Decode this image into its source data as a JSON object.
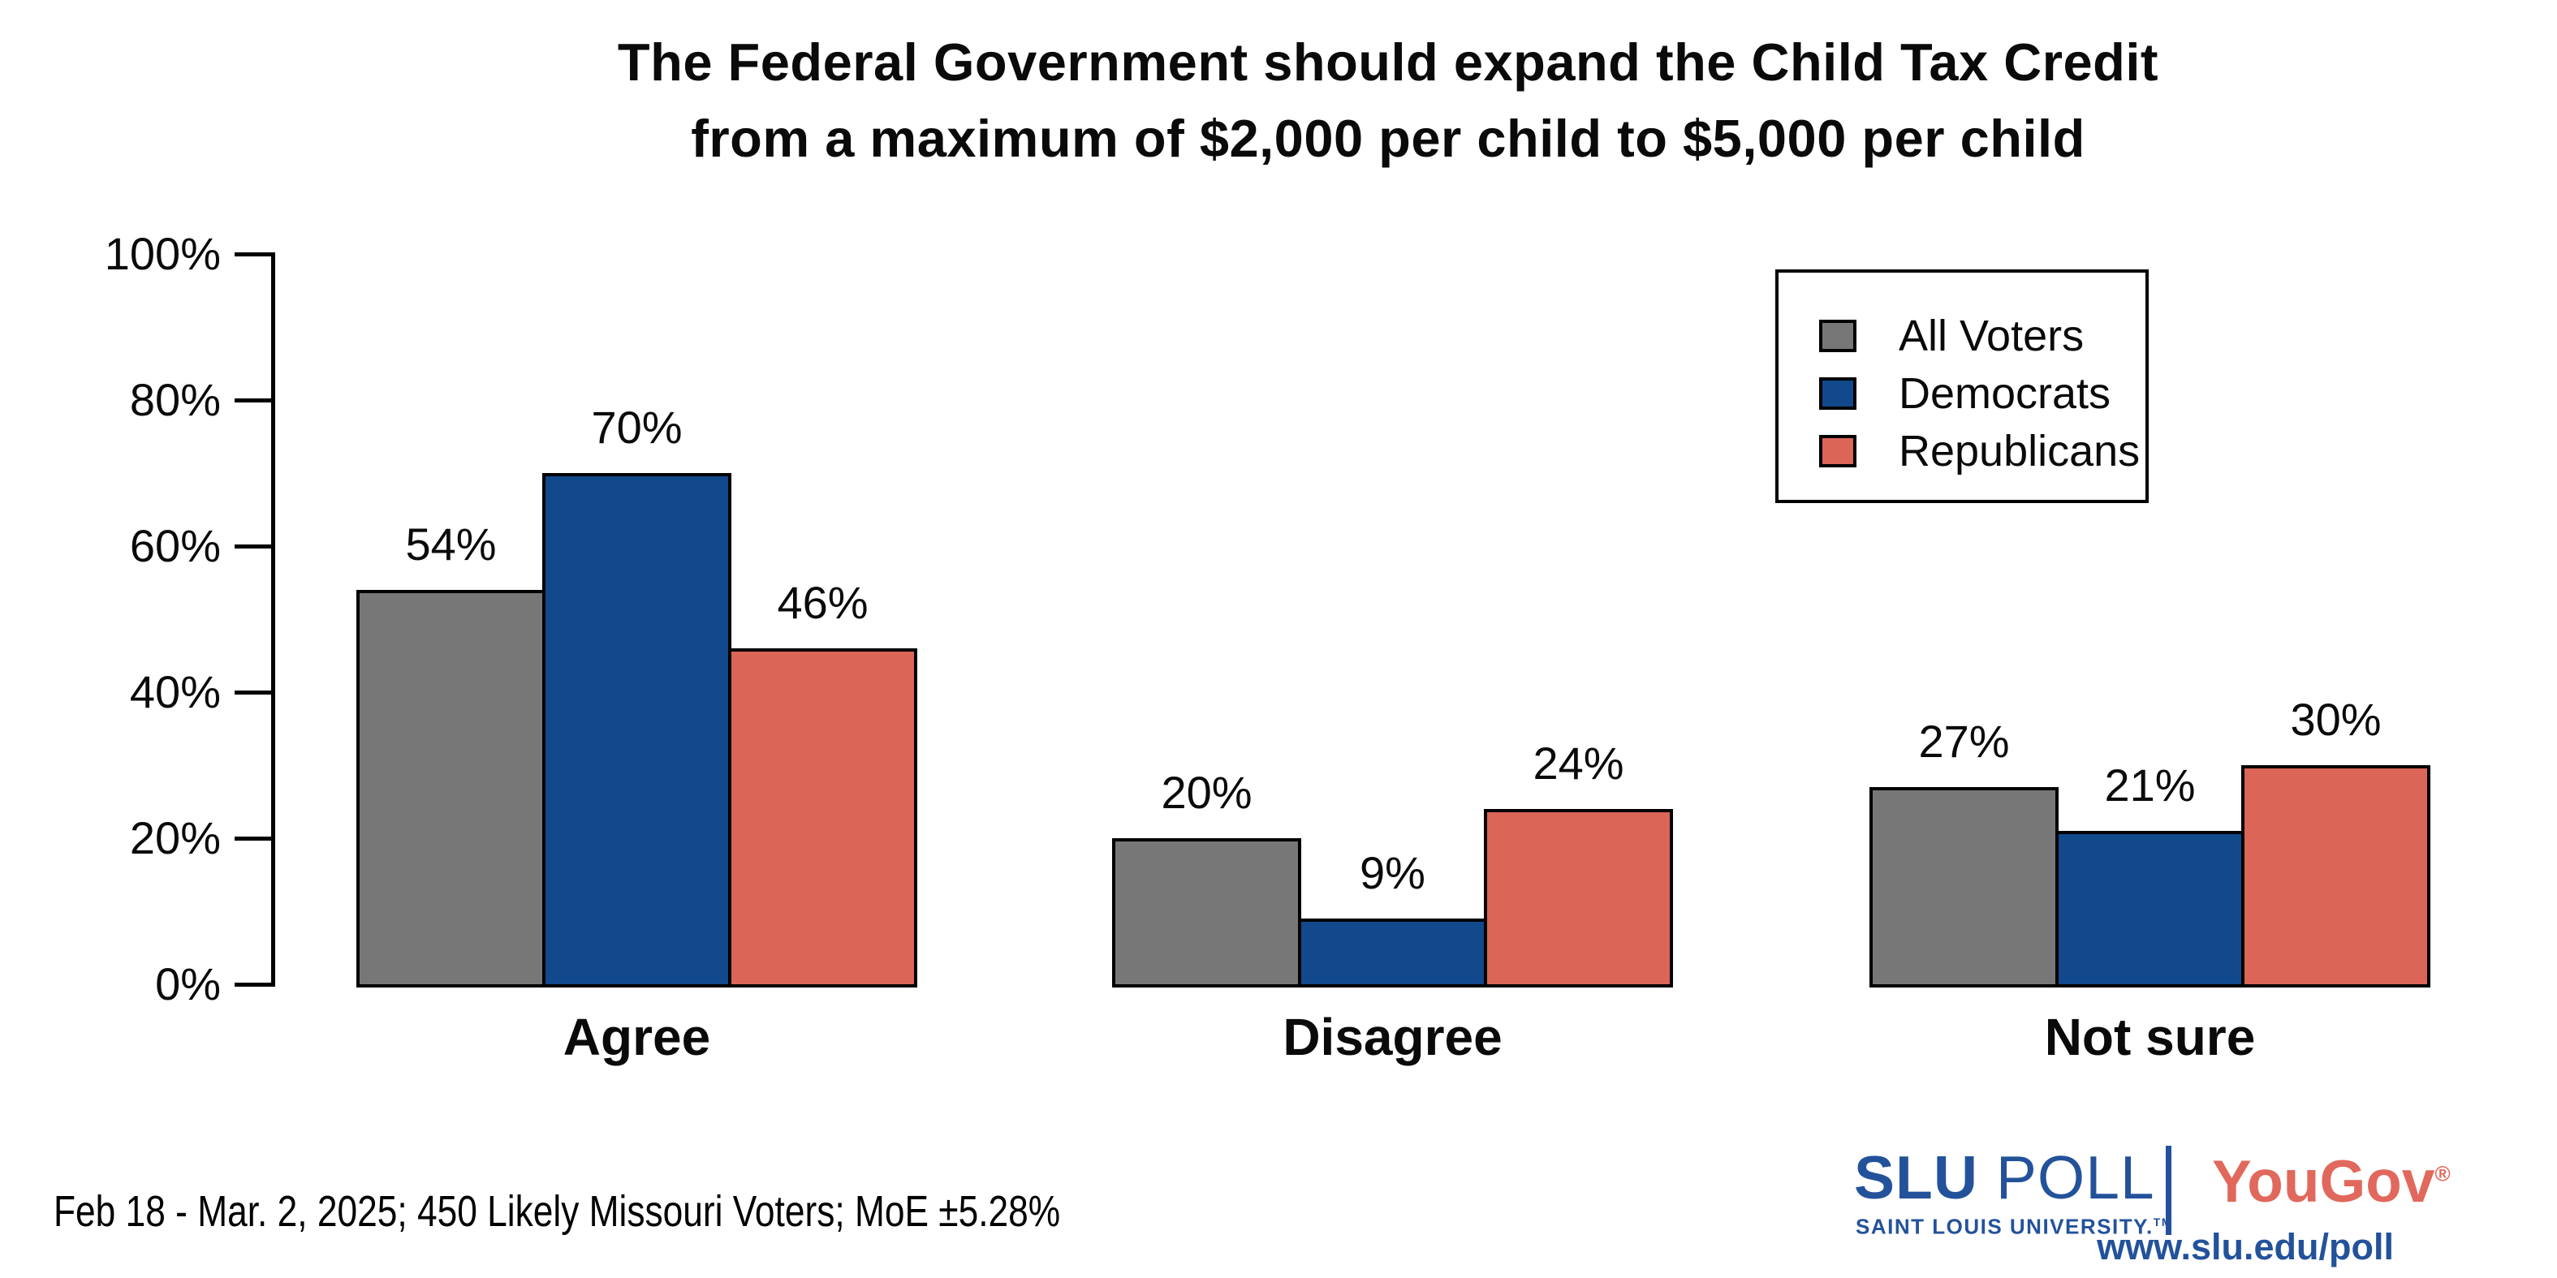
{
  "title": {
    "line1": "The Federal Government should expand the Child Tax Credit",
    "line2": "from a maximum of $2,000 per child to $5,000 per child"
  },
  "chart_data": {
    "type": "bar",
    "categories": [
      "Agree",
      "Disagree",
      "Not sure"
    ],
    "series": [
      {
        "name": "All Voters",
        "color": "#777777",
        "values": [
          54,
          20,
          27
        ]
      },
      {
        "name": "Democrats",
        "color": "#11498C",
        "values": [
          70,
          9,
          21
        ]
      },
      {
        "name": "Republicans",
        "color": "#DB6557",
        "values": [
          46,
          24,
          30
        ]
      }
    ],
    "value_label_suffix": "%",
    "yticks": [
      "0%",
      "20%",
      "40%",
      "60%",
      "80%",
      "100%"
    ],
    "ylim": [
      0,
      100
    ],
    "grid": false,
    "legend_position": "top-right",
    "bar_border_color": "#000000"
  },
  "footer": {
    "note": "Feb 18 - Mar. 2, 2025; 450 Likely Missouri Voters; MoE ±5.28%"
  },
  "branding": {
    "slu_poll_bold": "SLU",
    "slu_poll_light": " POLL",
    "slu_subtitle": "SAINT LOUIS UNIVERSITY.",
    "slu_trademark": "TM",
    "yougov": "YouGov",
    "yougov_reg": "®",
    "url": "www.slu.edu/poll",
    "slu_blue": "#23529B",
    "yougov_red": "#E1685C"
  }
}
